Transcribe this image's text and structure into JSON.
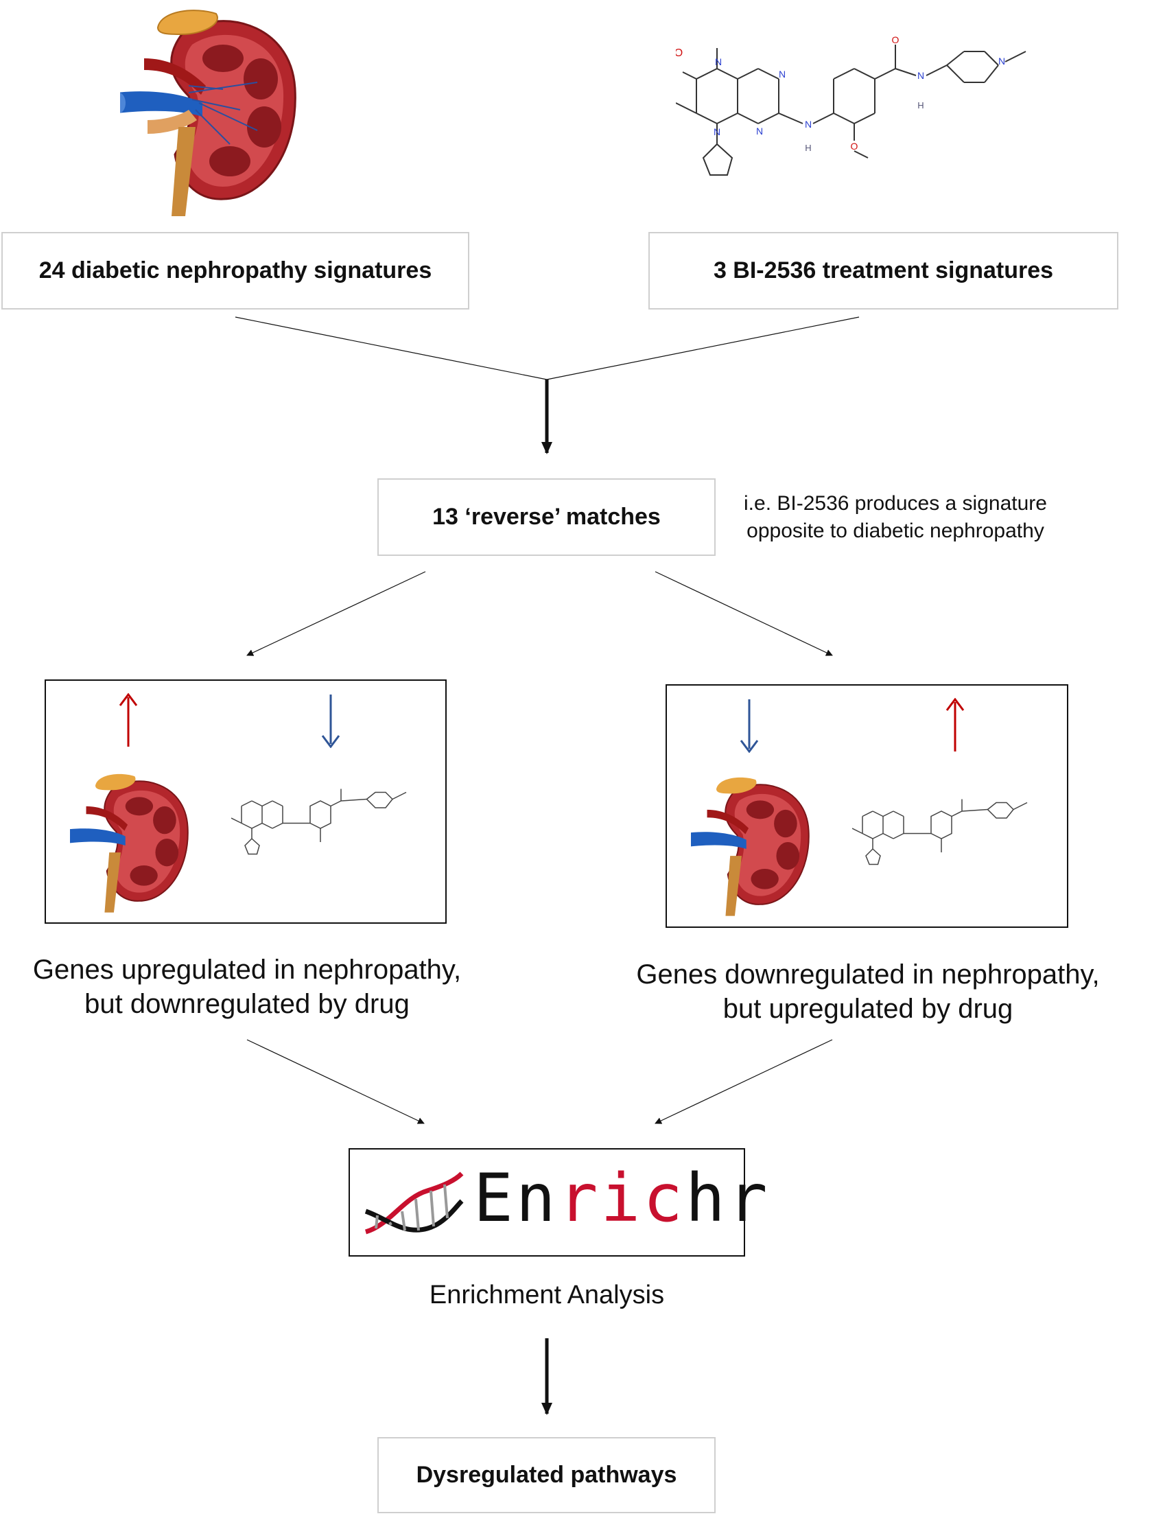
{
  "top": {
    "left_box": "24 diabetic nephropathy signatures",
    "right_box": "3 BI-2536 treatment signatures"
  },
  "middle": {
    "matches_box": "13 ‘reverse’ matches",
    "note_line1": "i.e. BI-2536 produces a signature",
    "note_line2": "opposite to diabetic nephropathy"
  },
  "branches": {
    "left_caption_line1": "Genes upregulated in nephropathy,",
    "left_caption_line2": "but downregulated by drug",
    "right_caption_line1": "Genes downregulated in nephropathy,",
    "right_caption_line2": "but upregulated by drug"
  },
  "enrichr": {
    "logo_letters": [
      "E",
      "n",
      "r",
      "i",
      "c",
      "h",
      "r"
    ],
    "logo_colors": [
      "#111111",
      "#111111",
      "#c8102e",
      "#c8102e",
      "#c8102e",
      "#111111",
      "#111111"
    ],
    "caption": "Enrichment Analysis"
  },
  "bottom": {
    "result_box": "Dysregulated pathways"
  },
  "molecule_labels": {
    "o1": "O",
    "n1": "N",
    "n2": "N",
    "n3": "N",
    "n4": "N",
    "n5": "N",
    "nh": "N",
    "h": "H",
    "o2": "O",
    "o3": "O",
    "nh2": "N",
    "h2": "H",
    "n6": "N"
  },
  "colors": {
    "arrow_up": "#c00000",
    "arrow_down": "#2f5597",
    "box_border_grey": "#cfcfcf",
    "kidney": "#b3262c",
    "vein": "#1f5fbf",
    "artery": "#a01818",
    "fat": "#e8a640",
    "ureter": "#c98a3a"
  }
}
